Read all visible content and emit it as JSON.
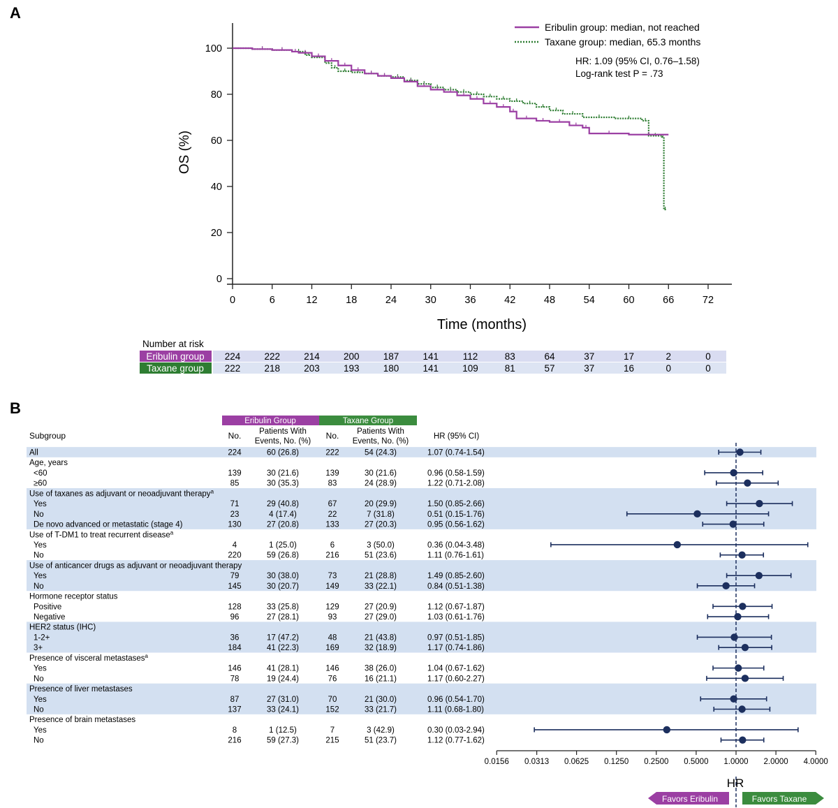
{
  "panel_a": {
    "letter": "A",
    "chart_data": {
      "type": "line",
      "title": "",
      "xlabel": "Time (months)",
      "ylabel": "OS (%)",
      "xlim": [
        0,
        72
      ],
      "ylim": [
        0,
        100
      ],
      "xticks": [
        0,
        6,
        12,
        18,
        24,
        30,
        36,
        42,
        48,
        54,
        60,
        66,
        72
      ],
      "yticks": [
        0,
        20,
        40,
        60,
        80,
        100
      ],
      "grid": false,
      "legend_position": "top-right",
      "series": [
        {
          "name": "Eribulin group: median, not reached",
          "color": "#9b3fa3",
          "style": "solid",
          "x": [
            0,
            3,
            6,
            9,
            10,
            12,
            14,
            16,
            18,
            20,
            22,
            24,
            26,
            28,
            30,
            32,
            34,
            36,
            38,
            40,
            42,
            43,
            46,
            48,
            51,
            53,
            54,
            60,
            66
          ],
          "y": [
            100,
            99.6,
            99.2,
            98.5,
            98,
            96.5,
            94.5,
            92.5,
            90.5,
            89,
            88,
            87,
            85.5,
            83.5,
            82,
            81,
            79.5,
            78,
            76,
            74.5,
            72.5,
            69.5,
            68.5,
            68,
            66.5,
            65.5,
            63,
            62.5,
            62.5
          ]
        },
        {
          "name": "Taxane group: median, 65.3 months",
          "color": "#2e7d32",
          "style": "dotted",
          "x": [
            0,
            3,
            6,
            9,
            11,
            12,
            14,
            15,
            16,
            18,
            20,
            22,
            24,
            26,
            28,
            30,
            32,
            34,
            36,
            38,
            40,
            42,
            44,
            46,
            48,
            50,
            53,
            58,
            62,
            63,
            65,
            65.3,
            65.7
          ],
          "y": [
            100,
            99.6,
            99.2,
            98.5,
            97,
            96,
            93.5,
            91.5,
            90,
            89.5,
            89,
            88,
            87.5,
            86,
            84.5,
            83,
            82,
            81,
            80,
            79,
            78,
            77,
            76,
            74.5,
            73,
            71.5,
            70,
            69.5,
            68.5,
            62,
            61.5,
            30,
            30
          ]
        }
      ],
      "annotations": [
        "HR: 1.09 (95% CI, 0.76–1.58)",
        "Log-rank test P = .73"
      ]
    },
    "risk_table": {
      "header": "Number at risk",
      "rows": [
        {
          "label": "Eribulin group",
          "color": "#9b3fa3",
          "values": [
            "224",
            "222",
            "214",
            "200",
            "187",
            "141",
            "112",
            "83",
            "64",
            "37",
            "17",
            "2",
            "0"
          ]
        },
        {
          "label": "Taxane group",
          "color": "#2e7d32",
          "values": [
            "222",
            "218",
            "203",
            "193",
            "180",
            "141",
            "109",
            "81",
            "57",
            "37",
            "16",
            "0",
            "0"
          ]
        }
      ]
    }
  },
  "panel_b": {
    "letter": "B",
    "group_headers": [
      {
        "label": "Eribulin Group",
        "color": "#9b3fa3"
      },
      {
        "label": "Taxane Group",
        "color": "#3b8c3e"
      }
    ],
    "columns": {
      "subgroup": "Subgroup",
      "no_e": "No.",
      "events_e_1": "Patients With",
      "events_e_2": "Events, No. (%)",
      "no_t": "No.",
      "events_t_1": "Patients With",
      "events_t_2": "Events, No. (%)",
      "hr": "HR (95% CI)"
    },
    "rows": [
      {
        "label": "All",
        "type": "data",
        "indent": false,
        "shade": true,
        "n_e": "224",
        "ev_e": "60 (26.8)",
        "n_t": "222",
        "ev_t": "54 (24.3)",
        "hr_text": "1.07 (0.74-1.54)",
        "hr": 1.07,
        "lo": 0.74,
        "hi": 1.54
      },
      {
        "label": "Age, years",
        "type": "header",
        "shade": false
      },
      {
        "label": "<60",
        "type": "data",
        "indent": true,
        "shade": false,
        "n_e": "139",
        "ev_e": "30 (21.6)",
        "n_t": "139",
        "ev_t": "30 (21.6)",
        "hr_text": "0.96 (0.58-1.59)",
        "hr": 0.96,
        "lo": 0.58,
        "hi": 1.59
      },
      {
        "label": "≥60",
        "type": "data",
        "indent": true,
        "shade": false,
        "n_e": "85",
        "ev_e": "30 (35.3)",
        "n_t": "83",
        "ev_t": "24 (28.9)",
        "hr_text": "1.22 (0.71-2.08)",
        "hr": 1.22,
        "lo": 0.71,
        "hi": 2.08
      },
      {
        "label": "Use of taxanes as adjuvant or neoadjuvant therapy",
        "sup": "a",
        "type": "header",
        "shade": true
      },
      {
        "label": "Yes",
        "type": "data",
        "indent": true,
        "shade": true,
        "n_e": "71",
        "ev_e": "29 (40.8)",
        "n_t": "67",
        "ev_t": "20 (29.9)",
        "hr_text": "1.50 (0.85-2.66)",
        "hr": 1.5,
        "lo": 0.85,
        "hi": 2.66
      },
      {
        "label": "No",
        "type": "data",
        "indent": true,
        "shade": true,
        "n_e": "23",
        "ev_e": "4 (17.4)",
        "n_t": "22",
        "ev_t": "7 (31.8)",
        "hr_text": "0.51 (0.15-1.76)",
        "hr": 0.51,
        "lo": 0.15,
        "hi": 1.76
      },
      {
        "label": "De novo advanced or metastatic (stage 4)",
        "type": "data",
        "indent": true,
        "shade": true,
        "n_e": "130",
        "ev_e": "27 (20.8)",
        "n_t": "133",
        "ev_t": "27 (20.3)",
        "hr_text": "0.95 (0.56-1.62)",
        "hr": 0.95,
        "lo": 0.56,
        "hi": 1.62
      },
      {
        "label": "Use of T-DM1 to treat recurrent disease",
        "sup": "a",
        "type": "header",
        "shade": false
      },
      {
        "label": "Yes",
        "type": "data",
        "indent": true,
        "shade": false,
        "n_e": "4",
        "ev_e": "1 (25.0)",
        "n_t": "6",
        "ev_t": "3 (50.0)",
        "hr_text": "0.36 (0.04-3.48)",
        "hr": 0.36,
        "lo": 0.04,
        "hi": 3.48
      },
      {
        "label": "No",
        "type": "data",
        "indent": true,
        "shade": false,
        "n_e": "220",
        "ev_e": "59 (26.8)",
        "n_t": "216",
        "ev_t": "51 (23.6)",
        "hr_text": "1.11 (0.76-1.61)",
        "hr": 1.11,
        "lo": 0.76,
        "hi": 1.61
      },
      {
        "label": "Use of anticancer drugs as adjuvant or neoadjuvant therapy",
        "type": "header",
        "shade": true
      },
      {
        "label": "Yes",
        "type": "data",
        "indent": true,
        "shade": true,
        "n_e": "79",
        "ev_e": "30 (38.0)",
        "n_t": "73",
        "ev_t": "21 (28.8)",
        "hr_text": "1.49 (0.85-2.60)",
        "hr": 1.49,
        "lo": 0.85,
        "hi": 2.6
      },
      {
        "label": "No",
        "type": "data",
        "indent": true,
        "shade": true,
        "n_e": "145",
        "ev_e": "30 (20.7)",
        "n_t": "149",
        "ev_t": "33 (22.1)",
        "hr_text": "0.84 (0.51-1.38)",
        "hr": 0.84,
        "lo": 0.51,
        "hi": 1.38
      },
      {
        "label": "Hormone receptor status",
        "type": "header",
        "shade": false
      },
      {
        "label": "Positive",
        "type": "data",
        "indent": true,
        "shade": false,
        "n_e": "128",
        "ev_e": "33 (25.8)",
        "n_t": "129",
        "ev_t": "27 (20.9)",
        "hr_text": "1.12 (0.67-1.87)",
        "hr": 1.12,
        "lo": 0.67,
        "hi": 1.87
      },
      {
        "label": "Negative",
        "type": "data",
        "indent": true,
        "shade": false,
        "n_e": "96",
        "ev_e": "27 (28.1)",
        "n_t": "93",
        "ev_t": "27 (29.0)",
        "hr_text": "1.03 (0.61-1.76)",
        "hr": 1.03,
        "lo": 0.61,
        "hi": 1.76
      },
      {
        "label": "HER2 status (IHC)",
        "type": "header",
        "shade": true
      },
      {
        "label": "1-2+",
        "type": "data",
        "indent": true,
        "shade": true,
        "n_e": "36",
        "ev_e": "17 (47.2)",
        "n_t": "48",
        "ev_t": "21 (43.8)",
        "hr_text": "0.97 (0.51-1.85)",
        "hr": 0.97,
        "lo": 0.51,
        "hi": 1.85
      },
      {
        "label": "3+",
        "type": "data",
        "indent": true,
        "shade": true,
        "n_e": "184",
        "ev_e": "41 (22.3)",
        "n_t": "169",
        "ev_t": "32 (18.9)",
        "hr_text": "1.17 (0.74-1.86)",
        "hr": 1.17,
        "lo": 0.74,
        "hi": 1.86
      },
      {
        "label": "Presence of visceral metastases",
        "sup": "a",
        "type": "header",
        "shade": false
      },
      {
        "label": "Yes",
        "type": "data",
        "indent": true,
        "shade": false,
        "n_e": "146",
        "ev_e": "41 (28.1)",
        "n_t": "146",
        "ev_t": "38 (26.0)",
        "hr_text": "1.04 (0.67-1.62)",
        "hr": 1.04,
        "lo": 0.67,
        "hi": 1.62
      },
      {
        "label": "No",
        "type": "data",
        "indent": true,
        "shade": false,
        "n_e": "78",
        "ev_e": "19 (24.4)",
        "n_t": "76",
        "ev_t": "16 (21.1)",
        "hr_text": "1.17 (0.60-2.27)",
        "hr": 1.17,
        "lo": 0.6,
        "hi": 2.27
      },
      {
        "label": "Presence of liver metastases",
        "type": "header",
        "shade": true
      },
      {
        "label": "Yes",
        "type": "data",
        "indent": true,
        "shade": true,
        "n_e": "87",
        "ev_e": "27 (31.0)",
        "n_t": "70",
        "ev_t": "21 (30.0)",
        "hr_text": "0.96 (0.54-1.70)",
        "hr": 0.96,
        "lo": 0.54,
        "hi": 1.7
      },
      {
        "label": "No",
        "type": "data",
        "indent": true,
        "shade": true,
        "n_e": "137",
        "ev_e": "33 (24.1)",
        "n_t": "152",
        "ev_t": "33 (21.7)",
        "hr_text": "1.11 (0.68-1.80)",
        "hr": 1.11,
        "lo": 0.68,
        "hi": 1.8
      },
      {
        "label": "Presence of brain metastases",
        "type": "header",
        "shade": false
      },
      {
        "label": "Yes",
        "type": "data",
        "indent": true,
        "shade": false,
        "n_e": "8",
        "ev_e": "1 (12.5)",
        "n_t": "7",
        "ev_t": "3 (42.9)",
        "hr_text": "0.30 (0.03-2.94)",
        "hr": 0.3,
        "lo": 0.03,
        "hi": 2.94
      },
      {
        "label": "No",
        "type": "data",
        "indent": true,
        "shade": false,
        "n_e": "216",
        "ev_e": "59 (27.3)",
        "n_t": "215",
        "ev_t": "51 (23.7)",
        "hr_text": "1.12 (0.77-1.62)",
        "hr": 1.12,
        "lo": 0.77,
        "hi": 1.62
      }
    ],
    "forest_axis": {
      "scale": "log2",
      "ticks": [
        0.0156,
        0.0313,
        0.0625,
        0.125,
        0.25,
        0.5,
        1.0,
        2.0,
        4.0
      ],
      "tick_labels": [
        "0.0156",
        "0.0313",
        "0.0625",
        "0.1250",
        "0.2500",
        "0.5000",
        "1.0000",
        "2.0000",
        "4.0000"
      ],
      "label": "HR",
      "reference": 1.0
    },
    "favors": [
      {
        "label": "Favors Eribulin",
        "color": "#9b3fa3",
        "direction": "left"
      },
      {
        "label": "Favors Taxane",
        "color": "#3b8c3e",
        "direction": "right"
      }
    ],
    "colors": {
      "shade": "#d3e0f1",
      "marker": "#1c2f5e"
    }
  }
}
